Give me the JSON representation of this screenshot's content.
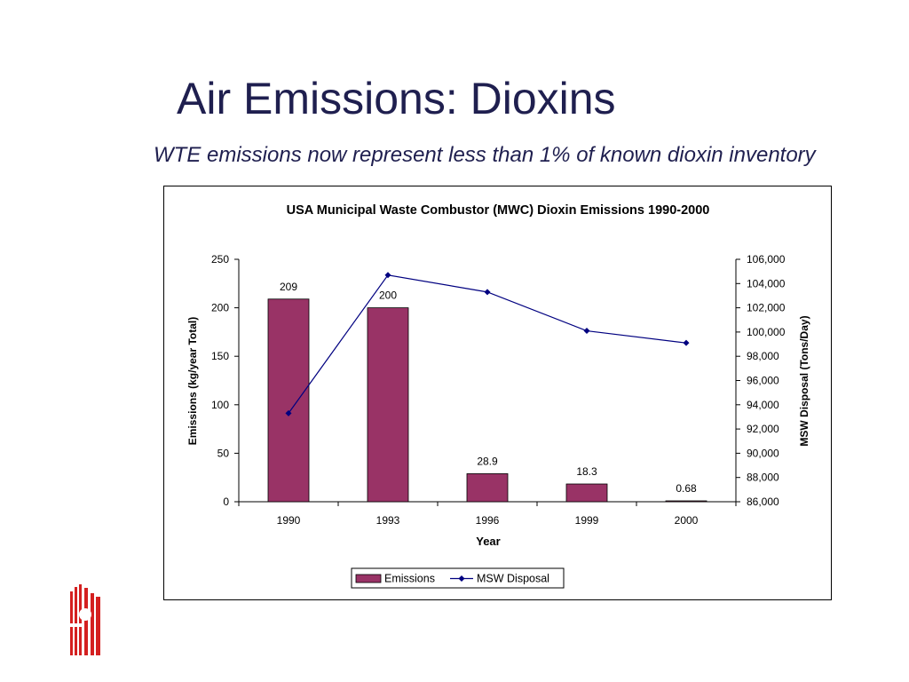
{
  "slide": {
    "title": "Air Emissions: Dioxins",
    "subtitle": "WTE emissions now represent less than 1% of known dioxin inventory"
  },
  "colors": {
    "title_text": "#1f1f4f",
    "bar_fill": "#993366",
    "line": "#000080",
    "logo_red": "#d42020"
  },
  "logo": {
    "icon": "building-columns-logo-icon"
  },
  "chart_data": {
    "type": "bar",
    "title": "USA Municipal Waste Combustor (MWC)  Dioxin Emissions 1990-2000",
    "xlabel": "Year",
    "ylabel": "Emissions (kg/year Total)",
    "y2label": "MSW Disposal (Tons/Day)",
    "categories": [
      "1990",
      "1993",
      "1996",
      "1999",
      "2000"
    ],
    "ylim": [
      0,
      250
    ],
    "y_ticks": [
      "0",
      "50",
      "100",
      "150",
      "200",
      "250"
    ],
    "y2lim": [
      86000,
      106000
    ],
    "y2_ticks": [
      "86,000",
      "88,000",
      "90,000",
      "92,000",
      "94,000",
      "96,000",
      "98,000",
      "100,000",
      "102,000",
      "104,000",
      "106,000"
    ],
    "grid": false,
    "legend_position": "bottom",
    "series": [
      {
        "name": "Emissions",
        "type": "bar",
        "axis": "left",
        "values": [
          209,
          200,
          28.9,
          18.3,
          0.68
        ],
        "data_labels": [
          "209",
          "200",
          "28.9",
          "18.3",
          "0.68"
        ]
      },
      {
        "name": "MSW Disposal",
        "type": "line",
        "axis": "right",
        "marker": "diamond",
        "values": [
          93300,
          104700,
          103300,
          100100,
          99100
        ]
      }
    ]
  }
}
